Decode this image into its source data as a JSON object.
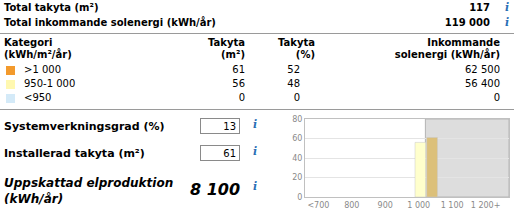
{
  "info_icon": "i",
  "summary": [
    {
      "label": "Total takyta (m²)",
      "value": "117"
    },
    {
      "label": "Total inkommande solenergi (kWh/år)",
      "value": "119 000"
    }
  ],
  "table": {
    "header": [
      [
        "Kategori",
        "(kWh/m²/år)"
      ],
      [
        "Takyta",
        "(m²)"
      ],
      [
        "Takyta",
        "(%)"
      ],
      [
        "Inkommande",
        "solenergi (kWh/år)"
      ]
    ],
    "rows": [
      {
        "color": "#f39a2c",
        "cells": [
          ">1 000",
          "61",
          "52",
          "62 500"
        ]
      },
      {
        "color": "#fff8b0",
        "cells": [
          "950-1 000",
          "56",
          "48",
          "56 400"
        ]
      },
      {
        "color": "#d4eaf8",
        "cells": [
          "<950",
          "0",
          "0",
          "0"
        ]
      }
    ]
  },
  "inputs": [
    {
      "label": "Systemverkningsgrad (%)",
      "value": "13"
    },
    {
      "label": "Installerad takyta (m²)",
      "value": "61"
    }
  ],
  "result": {
    "label": [
      "Uppskattad elproduktion",
      "(kWh/år)"
    ],
    "value": "8 100"
  },
  "chart_data": {
    "type": "bar",
    "x": [
      1005,
      1040
    ],
    "values": [
      56,
      61
    ],
    "colors": [
      "#ffffcc",
      "#dcc07a"
    ],
    "highlight_from": 1020,
    "xlim": [
      660,
      1270
    ],
    "xticks": [
      {
        "value": 700,
        "label": "<700"
      },
      800,
      900,
      {
        "value": 1000,
        "label": "1 000"
      },
      {
        "value": 1100,
        "label": "1 100"
      },
      {
        "value": 1200,
        "label": "1 200+"
      }
    ],
    "ylim": [
      0,
      80
    ],
    "yticks": [
      0,
      20,
      40,
      60,
      80
    ],
    "grid": true
  }
}
